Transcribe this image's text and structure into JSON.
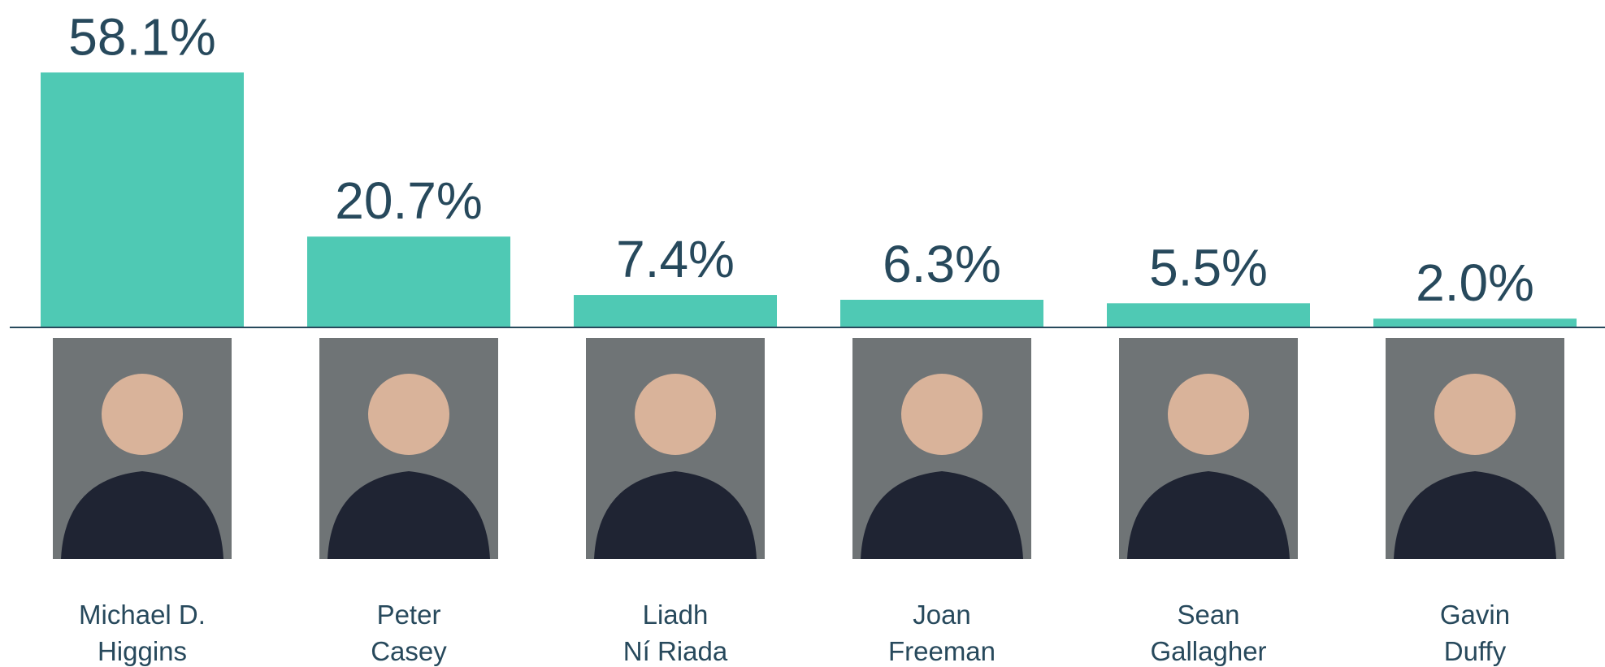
{
  "chart_data": {
    "type": "bar",
    "categories": [
      [
        "Michael D.",
        "Higgins"
      ],
      [
        "Peter",
        "Casey"
      ],
      [
        "Liadh",
        "Ní Riada"
      ],
      [
        "Joan",
        "Freeman"
      ],
      [
        "Sean",
        "Gallagher"
      ],
      [
        "Gavin",
        "Duffy"
      ]
    ],
    "values": [
      58.1,
      20.7,
      7.4,
      6.3,
      5.5,
      2.0
    ],
    "value_labels": [
      "58.1%",
      "20.7%",
      "7.4%",
      "6.3%",
      "5.5%",
      "2.0%"
    ],
    "color": "#4fc9b4"
  }
}
